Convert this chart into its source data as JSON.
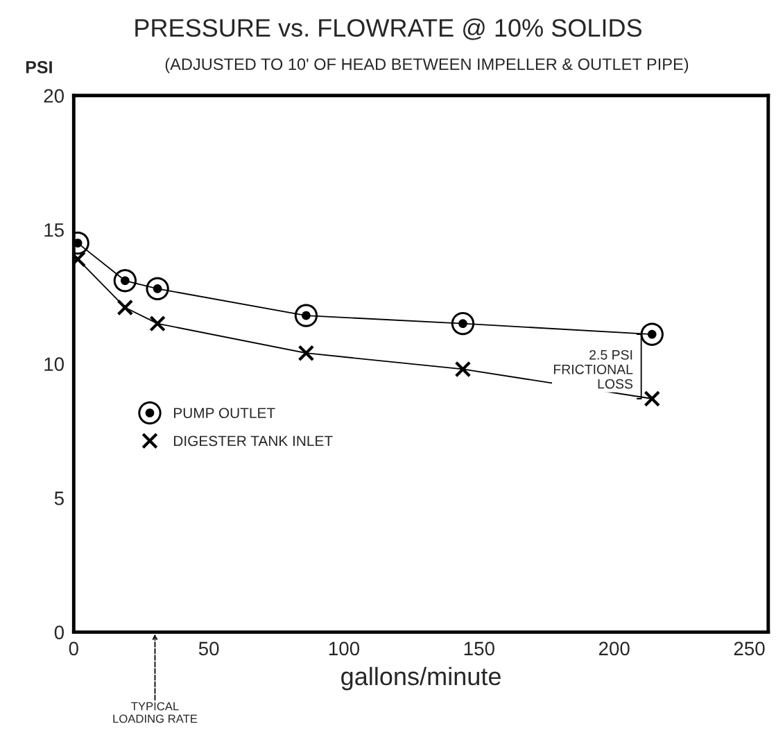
{
  "chart_data": {
    "type": "line",
    "title": "PRESSURE vs. FLOWRATE @ 10% SOLIDS",
    "subtitle": "(ADJUSTED TO 10' OF HEAD BETWEEN IMPELLER & OUTLET PIPE)",
    "xlabel": "gallons/minute",
    "ylabel": "PSI",
    "x": [
      1.5,
      19,
      31,
      86,
      144,
      214
    ],
    "series": [
      {
        "name": "PUMP OUTLET",
        "color": "#000000",
        "marker": "circle",
        "values": [
          14.5,
          13.1,
          12.8,
          11.8,
          11.5,
          11.1
        ]
      },
      {
        "name": "DIGESTER TANK INLET",
        "color": "#000000",
        "marker": "cross",
        "values": [
          13.9,
          12.1,
          11.5,
          10.4,
          9.8,
          8.7
        ]
      }
    ],
    "xlim": [
      0,
      257
    ],
    "ylim": [
      0,
      20
    ],
    "xticks": [
      0,
      50,
      100,
      150,
      200,
      250
    ],
    "yticks": [
      0,
      5,
      10,
      15,
      20
    ],
    "grid": false,
    "legend": "left",
    "line_style": "solid",
    "annotations": [
      {
        "text": "2.5 PSI\nFRICTIONAL\nLOSS",
        "x": 214,
        "y": 11.1
      },
      "TYPICAL\nLOADING RATE"
    ]
  }
}
